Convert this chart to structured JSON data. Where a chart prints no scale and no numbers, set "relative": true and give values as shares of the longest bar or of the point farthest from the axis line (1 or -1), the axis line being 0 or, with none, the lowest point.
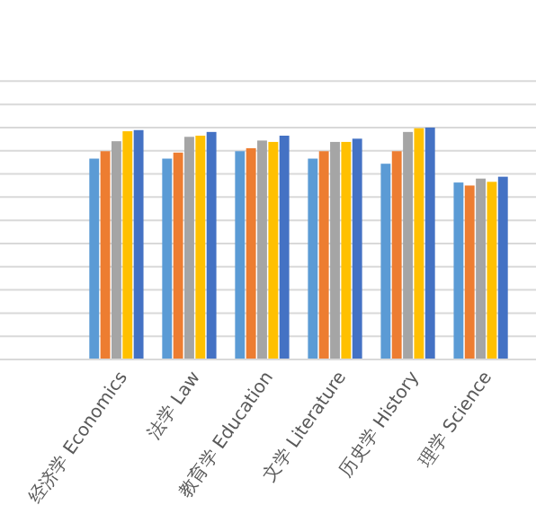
{
  "chart_data": {
    "type": "bar",
    "relative": true,
    "grid": "y",
    "categories": [
      "经济学 Economics",
      "法学 Law",
      "教育学 Education",
      "文学 Literature",
      "历史学 History",
      "理学 Science"
    ],
    "series": [
      {
        "color": "#5b9bd5",
        "values": [
          0.866,
          0.866,
          0.898,
          0.866,
          0.844,
          0.763
        ]
      },
      {
        "color": "#ed7d31",
        "values": [
          0.898,
          0.892,
          0.911,
          0.898,
          0.898,
          0.75
        ]
      },
      {
        "color": "#a5a5a5",
        "values": [
          0.941,
          0.96,
          0.944,
          0.938,
          0.981,
          0.78
        ]
      },
      {
        "color": "#ffc000",
        "values": [
          0.984,
          0.965,
          0.938,
          0.938,
          0.997,
          0.766
        ]
      },
      {
        "color": "#4472c4",
        "values": [
          0.989,
          0.981,
          0.965,
          0.952,
          1,
          0.788
        ]
      }
    ]
  }
}
